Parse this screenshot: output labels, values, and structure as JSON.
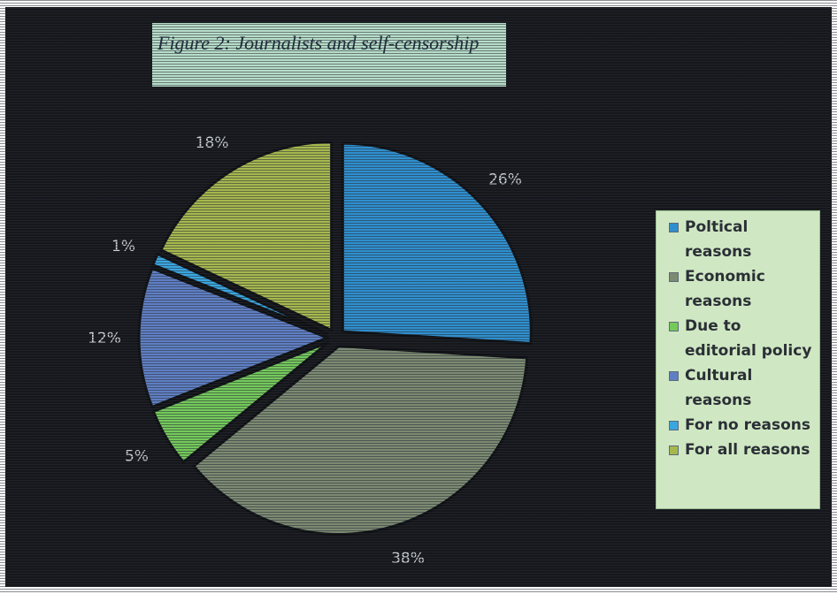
{
  "chart_data": {
    "type": "pie",
    "title": "Figure 2: Journalists and self-censorship",
    "slices": [
      {
        "label": "Poltical reasons",
        "value": 26,
        "display": "26%",
        "color": "#2f8fce"
      },
      {
        "label": "Economic reasons",
        "value": 38,
        "display": "38%",
        "color": "#7c8a72"
      },
      {
        "label": "Due to editorial policy",
        "value": 5,
        "display": "5%",
        "color": "#74c95b"
      },
      {
        "label": "Cultural reasons",
        "value": 12,
        "display": "12%",
        "color": "#5f7fc4"
      },
      {
        "label": "For no reasons",
        "value": 1,
        "display": "1%",
        "color": "#3aa6e0"
      },
      {
        "label": "For all reasons",
        "value": 18,
        "display": "18%",
        "color": "#a6b74e"
      }
    ],
    "legend_position": "right"
  }
}
